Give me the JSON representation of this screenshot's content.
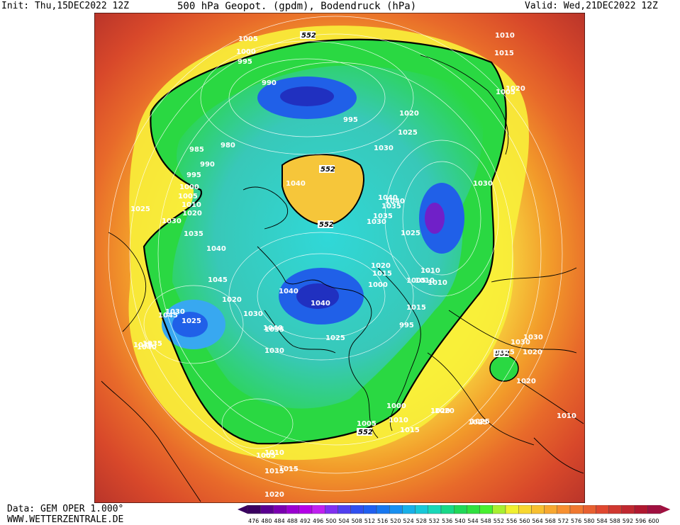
{
  "header": {
    "init": "Init: Thu,15DEC2022 12Z",
    "title": "500 hPa Geopot. (gpdm), Bodendruck (hPa)",
    "valid": "Valid: Wed,21DEC2022 12Z"
  },
  "footer": {
    "data_source": "Data: GEM OPER 1.000°",
    "website": "WWW.WETTERZENTRALE.DE"
  },
  "colors": {
    "ocean_deep_red": "#b5322a",
    "red": "#d8482a",
    "orange_red": "#e86a2a",
    "orange": "#f29a2a",
    "yellow_orange": "#f6c63a",
    "yellow": "#f8ef3a",
    "green": "#2ad842",
    "light_green": "#4cf03c",
    "cyan": "#30d8d8",
    "light_blue": "#38a8f0",
    "blue": "#2060e8",
    "deep_blue": "#2030c0",
    "purple": "#7020c8"
  },
  "legend": {
    "values": [
      "476",
      "480",
      "484",
      "488",
      "492",
      "496",
      "500",
      "504",
      "508",
      "512",
      "516",
      "520",
      "524",
      "528",
      "532",
      "536",
      "540",
      "544",
      "548",
      "552",
      "556",
      "560",
      "564",
      "568",
      "572",
      "576",
      "580",
      "584",
      "588",
      "592",
      "596",
      "600"
    ],
    "colors": [
      "#3a0060",
      "#5a0090",
      "#7a00b0",
      "#9a00d0",
      "#b400e8",
      "#c020f0",
      "#8030f0",
      "#5040f0",
      "#3050f0",
      "#2060f0",
      "#1878f0",
      "#1890f0",
      "#18b0e8",
      "#18c8d8",
      "#18d8b8",
      "#18d888",
      "#20d858",
      "#30e040",
      "#48f030",
      "#a8f030",
      "#f0f030",
      "#f8d830",
      "#f8c030",
      "#f8a830",
      "#f89030",
      "#f07830",
      "#e86030",
      "#e04830",
      "#d03830",
      "#c02830",
      "#b01830",
      "#a01040"
    ]
  },
  "map": {
    "contour_552_label": "552",
    "pressure_labels": [
      {
        "t": "1005"
      },
      {
        "t": "1000"
      },
      {
        "t": "995"
      },
      {
        "t": "990"
      },
      {
        "t": "995"
      },
      {
        "t": "985"
      },
      {
        "t": "980"
      },
      {
        "t": "990"
      },
      {
        "t": "995"
      },
      {
        "t": "1000"
      },
      {
        "t": "1005"
      },
      {
        "t": "1010"
      },
      {
        "t": "1020"
      },
      {
        "t": "1025"
      },
      {
        "t": "1030"
      },
      {
        "t": "1035"
      },
      {
        "t": "1040"
      },
      {
        "t": "1045"
      },
      {
        "t": "1045"
      },
      {
        "t": "1030"
      },
      {
        "t": "1025"
      },
      {
        "t": "1020"
      },
      {
        "t": "1040"
      },
      {
        "t": "1035"
      },
      {
        "t": "1020"
      },
      {
        "t": "1015"
      },
      {
        "t": "1000"
      },
      {
        "t": "1005"
      },
      {
        "t": "1010"
      },
      {
        "t": "1015"
      },
      {
        "t": "1020"
      },
      {
        "t": "1010"
      },
      {
        "t": "1015"
      },
      {
        "t": "1020"
      },
      {
        "t": "1030"
      },
      {
        "t": "1035"
      },
      {
        "t": "1030"
      },
      {
        "t": "1025"
      },
      {
        "t": "1030"
      },
      {
        "t": "1040"
      },
      {
        "t": "1035"
      },
      {
        "t": "1030"
      },
      {
        "t": "1025"
      },
      {
        "t": "1020"
      },
      {
        "t": "1015"
      },
      {
        "t": "1010"
      },
      {
        "t": "1005"
      },
      {
        "t": "995"
      },
      {
        "t": "1040"
      },
      {
        "t": "1035"
      },
      {
        "t": "1040"
      },
      {
        "t": "1040"
      },
      {
        "t": "1035"
      },
      {
        "t": "1030"
      },
      {
        "t": "1025"
      },
      {
        "t": "1010"
      },
      {
        "t": "1040"
      },
      {
        "t": "1030"
      },
      {
        "t": "1020"
      },
      {
        "t": "1025"
      },
      {
        "t": "1020"
      },
      {
        "t": "1015"
      },
      {
        "t": "1010"
      },
      {
        "t": "1030"
      },
      {
        "t": "1020"
      },
      {
        "t": "1000"
      },
      {
        "t": "1005"
      },
      {
        "t": "1010"
      },
      {
        "t": "1015"
      },
      {
        "t": "1025"
      },
      {
        "t": "1020"
      },
      {
        "t": "1010"
      },
      {
        "t": "1015"
      },
      {
        "t": "1005"
      },
      {
        "t": "1040"
      }
    ]
  }
}
